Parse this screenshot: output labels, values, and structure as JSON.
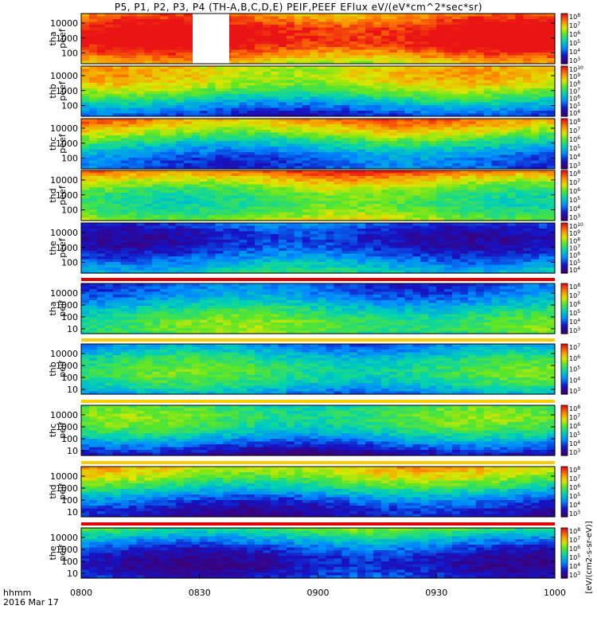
{
  "title": "P5, P1, P2, P3, P4 (TH-A,B,C,D,E) PEIF,PEEF EFlux eV/(eV*cm^2*sec*sr)",
  "time_axis": {
    "label_line1": "hhmm",
    "label_line2": "2016 Mar 17",
    "ticks": [
      "0800",
      "0830",
      "0900",
      "0930",
      "1000"
    ]
  },
  "colorbar_label": "[eV/(cm2-s-sr-eV)]",
  "chart_data": [
    {
      "type": "heatmap",
      "ylabel": [
        "tha",
        "peef"
      ],
      "y_ticks": [
        "10000",
        "1000",
        "100"
      ],
      "colorbar_ticks": [
        "10^8",
        "10^7",
        "10^6",
        "10^5",
        "10^4",
        "10^3"
      ],
      "has_gap": true,
      "level": 0.78
    },
    {
      "type": "heatmap",
      "ylabel": [
        "thb",
        "peef"
      ],
      "y_ticks": [
        "10000",
        "1000",
        "100"
      ],
      "colorbar_ticks": [
        "10^10",
        "10^9",
        "10^8",
        "10^7",
        "10^6",
        "10^5",
        "10^4"
      ],
      "level": 0.45
    },
    {
      "type": "heatmap",
      "ylabel": [
        "thc",
        "peef"
      ],
      "y_ticks": [
        "10000",
        "1000",
        "100"
      ],
      "colorbar_ticks": [
        "10^8",
        "10^7",
        "10^6",
        "10^5",
        "10^4",
        "10^3"
      ],
      "level": 0.55
    },
    {
      "type": "heatmap",
      "ylabel": [
        "thd",
        "peef"
      ],
      "y_ticks": [
        "10000",
        "1000",
        "100"
      ],
      "colorbar_ticks": [
        "10^8",
        "10^7",
        "10^6",
        "10^5",
        "10^4",
        "10^3"
      ],
      "level": 0.8
    },
    {
      "type": "heatmap",
      "ylabel": [
        "the",
        "peef"
      ],
      "y_ticks": [
        "10000",
        "1000",
        "100"
      ],
      "colorbar_ticks": [
        "10^10",
        "10^9",
        "10^8",
        "10^7",
        "10^6",
        "10^5",
        "10^4"
      ],
      "level": 0.35
    },
    {
      "type": "heatmap",
      "ylabel": [
        "tha",
        "peif"
      ],
      "y_ticks": [
        "10000",
        "1000",
        "100",
        "10"
      ],
      "colorbar_ticks": [
        "10^8",
        "10^7",
        "10^6",
        "10^5",
        "10^4",
        "10^3"
      ],
      "level": 0.4
    },
    {
      "type": "heatmap",
      "ylabel": [
        "thb",
        "peif"
      ],
      "y_ticks": [
        "10000",
        "1000",
        "100",
        "10"
      ],
      "colorbar_ticks": [
        "10^7",
        "10^6",
        "10^5",
        "10^4",
        "10^3"
      ],
      "level": 0.3
    },
    {
      "type": "heatmap",
      "ylabel": [
        "thc",
        "peif"
      ],
      "y_ticks": [
        "10000",
        "1000",
        "100",
        "10"
      ],
      "colorbar_ticks": [
        "10^8",
        "10^7",
        "10^6",
        "10^5",
        "10^4",
        "10^3"
      ],
      "level": 0.28
    },
    {
      "type": "heatmap",
      "ylabel": [
        "thd",
        "peif"
      ],
      "y_ticks": [
        "10000",
        "1000",
        "100",
        "10"
      ],
      "colorbar_ticks": [
        "10^8",
        "10^7",
        "10^6",
        "10^5",
        "10^4",
        "10^3"
      ],
      "level": 0.42
    },
    {
      "type": "heatmap",
      "ylabel": [
        "the",
        "peif"
      ],
      "y_ticks": [
        "10000",
        "1000",
        "100",
        "10"
      ],
      "colorbar_ticks": [
        "10^8",
        "10^7",
        "10^6",
        "10^5",
        "10^4",
        "10^3"
      ],
      "level": 0.38
    }
  ]
}
